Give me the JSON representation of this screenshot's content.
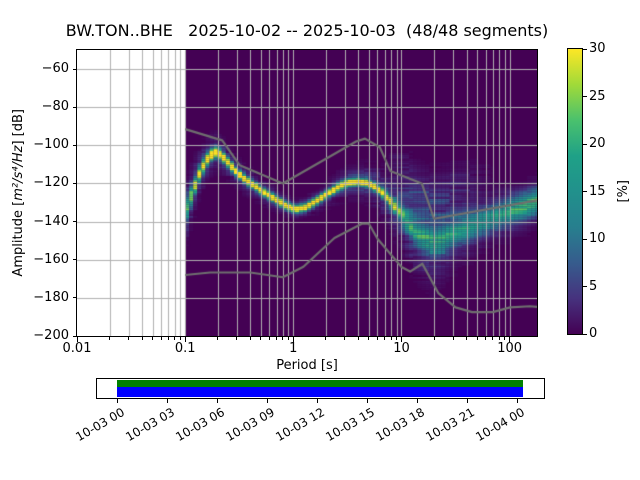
{
  "title": "BW.TON..BHE   2025-10-02 -- 2025-10-03  (48/48 segments)",
  "axes": {
    "xlabel": "Period [s]",
    "ylabel": {
      "prefix": "Amplitude [",
      "math": "m²/s⁴/Hz",
      "suffix": "] [dB]"
    },
    "x_scale": "log",
    "x_range": [
      0.01,
      179
    ],
    "y_range": [
      -200,
      -50
    ],
    "x_ticks": [
      {
        "label": "0.01",
        "value": 0.01
      },
      {
        "label": "0.1",
        "value": 0.1
      },
      {
        "label": "1",
        "value": 1
      },
      {
        "label": "10",
        "value": 10
      },
      {
        "label": "100",
        "value": 100
      }
    ],
    "y_ticks": [
      {
        "label": "−60",
        "value": -60
      },
      {
        "label": "−80",
        "value": -80
      },
      {
        "label": "−100",
        "value": -100
      },
      {
        "label": "−120",
        "value": -120
      },
      {
        "label": "−140",
        "value": -140
      },
      {
        "label": "−160",
        "value": -160
      },
      {
        "label": "−180",
        "value": -180
      },
      {
        "label": "−200",
        "value": -200
      }
    ],
    "grid_color": "#b0b0b0"
  },
  "colorbar": {
    "label": "[%]",
    "min": 0,
    "max": 30,
    "ticks": [
      0,
      5,
      10,
      15,
      20,
      25,
      30
    ],
    "colormap": "viridis",
    "stops": [
      [
        0,
        "#440154"
      ],
      [
        0.125,
        "#46327e"
      ],
      [
        0.25,
        "#365c8d"
      ],
      [
        0.375,
        "#277f8e"
      ],
      [
        0.5,
        "#21918c"
      ],
      [
        0.625,
        "#1fa187"
      ],
      [
        0.75,
        "#4ac16d"
      ],
      [
        0.875,
        "#a0da39"
      ],
      [
        1,
        "#fde725"
      ]
    ]
  },
  "chart_data": {
    "type": "heatmap",
    "description": "Seismic PPSD probability histogram: probability [%] of PSD amplitude [dB] per period bin. Data covers periods 0.1–179 s; 0.01–0.1 s region empty (white). Background (0%) is viridis dark purple.",
    "data_period_min": 0.1,
    "db_bin_width": 1,
    "period_step_octaves": 0.125,
    "mode_curve_period_db": [
      [
        0.1,
        -136
      ],
      [
        0.107,
        -131
      ],
      [
        0.115,
        -126
      ],
      [
        0.125,
        -120.5
      ],
      [
        0.135,
        -115.5
      ],
      [
        0.15,
        -110
      ],
      [
        0.17,
        -105.5
      ],
      [
        0.19,
        -103.5
      ],
      [
        0.215,
        -105
      ],
      [
        0.25,
        -109
      ],
      [
        0.3,
        -114
      ],
      [
        0.37,
        -118.5
      ],
      [
        0.45,
        -121.5
      ],
      [
        0.55,
        -125
      ],
      [
        0.7,
        -128.5
      ],
      [
        0.85,
        -131.5
      ],
      [
        1.05,
        -133.5
      ],
      [
        1.3,
        -132.5
      ],
      [
        1.6,
        -129.5
      ],
      [
        2.0,
        -126
      ],
      [
        2.6,
        -121.8
      ],
      [
        3.2,
        -119.5
      ],
      [
        4.0,
        -119
      ],
      [
        4.8,
        -119.8
      ],
      [
        5.6,
        -121.5
      ],
      [
        6.5,
        -124.2
      ],
      [
        7.8,
        -128.9
      ],
      [
        9.4,
        -134.1
      ],
      [
        11.0,
        -139
      ],
      [
        14.0,
        -146
      ],
      [
        17.0,
        -149
      ],
      [
        21.0,
        -150.5
      ],
      [
        26.0,
        -148
      ],
      [
        32.0,
        -145.5
      ],
      [
        45.0,
        -142
      ],
      [
        60.0,
        -139.5
      ],
      [
        80.0,
        -136.5
      ],
      [
        105,
        -134
      ],
      [
        140,
        -131.8
      ],
      [
        179,
        -129.5
      ]
    ],
    "model": {
      "core_amp": [
        [
          0.1,
          16
        ],
        [
          0.11,
          20
        ],
        [
          0.125,
          25
        ],
        [
          0.15,
          30
        ],
        [
          0.17,
          33
        ],
        [
          5.5,
          33
        ],
        [
          6.5,
          30
        ],
        [
          8.0,
          26
        ],
        [
          9.5,
          20
        ],
        [
          11,
          16
        ],
        [
          13,
          15
        ],
        [
          30,
          15
        ],
        [
          45,
          14
        ],
        [
          80,
          15
        ],
        [
          110,
          17
        ],
        [
          179,
          19
        ]
      ],
      "core_sigma": [
        [
          0.1,
          4.5
        ],
        [
          0.12,
          3.0
        ],
        [
          0.15,
          2.2
        ],
        [
          0.2,
          1.8
        ],
        [
          0.3,
          1.5
        ],
        [
          6.0,
          1.5
        ],
        [
          8.0,
          2.2
        ],
        [
          10,
          3.2
        ],
        [
          13,
          4.2
        ],
        [
          16,
          5.0
        ],
        [
          25,
          5.0
        ],
        [
          35,
          4.6
        ],
        [
          179,
          4.2
        ]
      ],
      "broad_amp": [
        [
          0.1,
          6
        ],
        [
          0.2,
          5
        ],
        [
          0.35,
          4
        ],
        [
          0.6,
          3
        ],
        [
          1.0,
          2.5
        ],
        [
          2.0,
          3
        ],
        [
          4.0,
          4
        ],
        [
          6.0,
          4
        ],
        [
          8.0,
          4.5
        ],
        [
          10,
          5
        ],
        [
          13,
          5.5
        ],
        [
          20,
          5.5
        ],
        [
          25,
          5
        ],
        [
          32,
          4.2
        ],
        [
          45,
          3.6
        ],
        [
          60,
          3.4
        ],
        [
          90,
          3.8
        ],
        [
          130,
          4
        ],
        [
          179,
          4
        ]
      ],
      "broad_sigma": [
        [
          0.1,
          9
        ],
        [
          0.15,
          6
        ],
        [
          0.2,
          5
        ],
        [
          0.3,
          4.2
        ],
        [
          0.5,
          4
        ],
        [
          1.0,
          3
        ],
        [
          2.0,
          4
        ],
        [
          4.0,
          5
        ],
        [
          6.0,
          6.5
        ],
        [
          8.0,
          8
        ],
        [
          10,
          10
        ],
        [
          13,
          12
        ],
        [
          20,
          13
        ],
        [
          25,
          12
        ],
        [
          32,
          10
        ],
        [
          45,
          9
        ],
        [
          60,
          8
        ],
        [
          90,
          8
        ],
        [
          179,
          7
        ]
      ],
      "upper_amp": [
        [
          0.1,
          0
        ],
        [
          7,
          0
        ],
        [
          9,
          1.5
        ],
        [
          12,
          3
        ],
        [
          16,
          4
        ],
        [
          22,
          4
        ],
        [
          30,
          3
        ],
        [
          40,
          2
        ],
        [
          55,
          1
        ],
        [
          70,
          0.4
        ],
        [
          90,
          0
        ],
        [
          179,
          0
        ]
      ],
      "upper_offset_db": 20,
      "upper_sigma_db": 9
    },
    "noise_models": {
      "color": "#6f6f6f",
      "nhnm": [
        [
          0.1,
          -91.5
        ],
        [
          0.22,
          -97.4
        ],
        [
          0.32,
          -110.5
        ],
        [
          0.8,
          -120.0
        ],
        [
          3.8,
          -98.0
        ],
        [
          4.6,
          -96.5
        ],
        [
          6.3,
          -101.0
        ],
        [
          7.9,
          -113.5
        ],
        [
          15.4,
          -120.0
        ],
        [
          20.0,
          -138.5
        ],
        [
          179.0,
          -128.9
        ]
      ],
      "nlnm": [
        [
          0.1,
          -168.0
        ],
        [
          0.17,
          -166.7
        ],
        [
          0.4,
          -166.7
        ],
        [
          0.8,
          -169.2
        ],
        [
          1.24,
          -163.7
        ],
        [
          2.4,
          -148.6
        ],
        [
          4.3,
          -141.1
        ],
        [
          5.0,
          -141.1
        ],
        [
          6.0,
          -149.0
        ],
        [
          10.0,
          -163.8
        ],
        [
          12.0,
          -166.2
        ],
        [
          15.6,
          -162.1
        ],
        [
          21.9,
          -177.5
        ],
        [
          31.6,
          -185.0
        ],
        [
          45.0,
          -187.5
        ],
        [
          70.0,
          -187.5
        ],
        [
          101.0,
          -185.0
        ],
        [
          154.0,
          -184.4
        ],
        [
          179.0,
          -184.7
        ]
      ]
    }
  },
  "timeline": {
    "tick_labels": [
      "10-03 00",
      "10-03 03",
      "10-03 06",
      "10-03 09",
      "10-03 12",
      "10-03 15",
      "10-03 18",
      "10-03 21",
      "10-04 00"
    ],
    "coverage_color": "#008000",
    "extent_color": "#0000ff"
  }
}
